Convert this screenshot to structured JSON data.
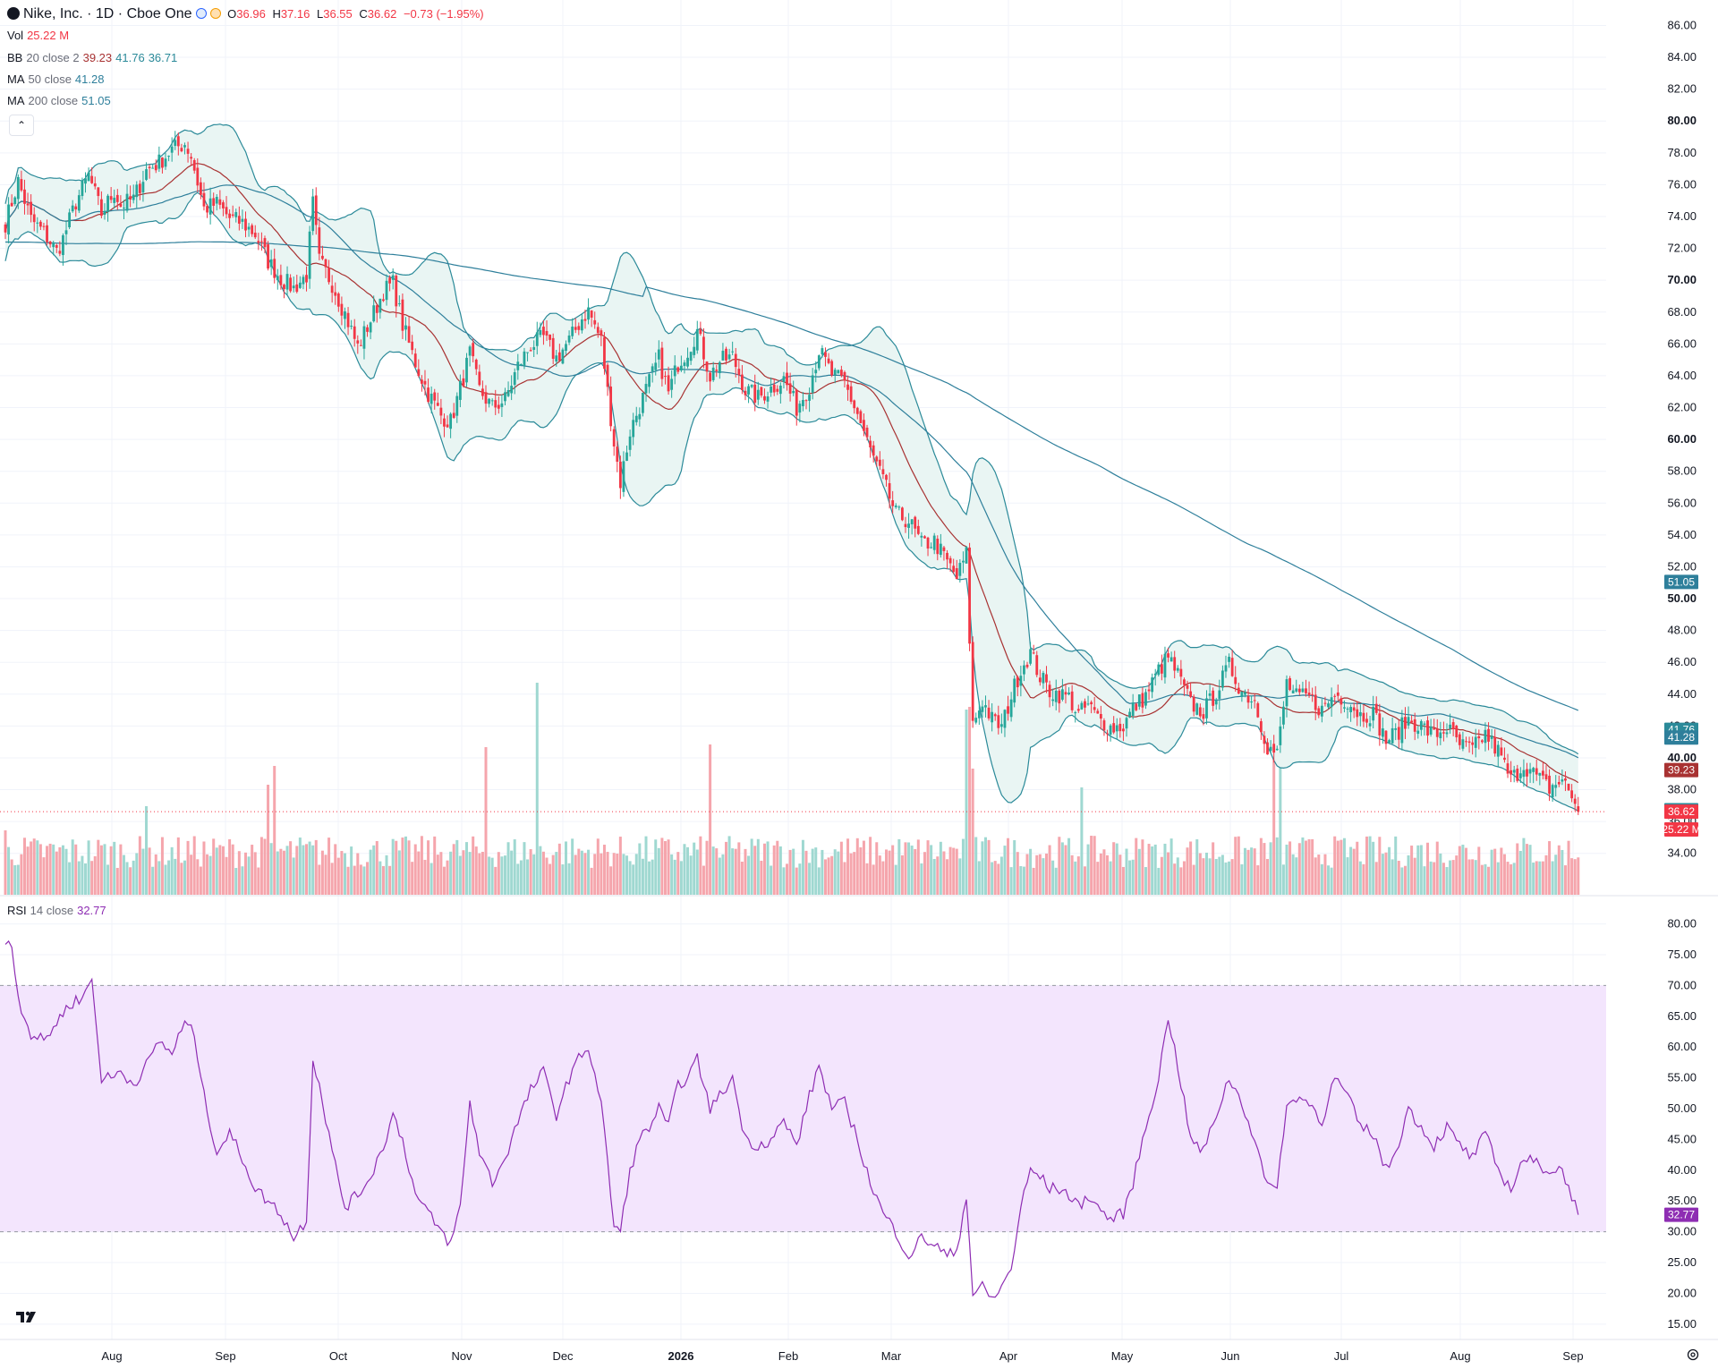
{
  "header": {
    "title": "Nike, Inc. · 1D · Cboe One",
    "open_label": "O",
    "open": "36.96",
    "high_label": "H",
    "high": "37.16",
    "low_label": "L",
    "low": "36.55",
    "close_label": "C",
    "close": "36.62",
    "change": "−0.73 (−1.95%)"
  },
  "indicators": {
    "vol": {
      "label": "Vol",
      "value": "25.22 M"
    },
    "bb": {
      "label": "BB",
      "params": "20 close 2",
      "basis": "39.23",
      "upper": "41.76",
      "lower": "36.71"
    },
    "ma50": {
      "label": "MA",
      "params": "50 close",
      "value": "41.28"
    },
    "ma200": {
      "label": "MA",
      "params": "200 close",
      "value": "51.05"
    },
    "rsi": {
      "label": "RSI",
      "params": "14 close",
      "value": "32.77"
    }
  },
  "colors": {
    "up": "#26a69a",
    "down": "#f23645",
    "bb": "#2b8a99",
    "bb_fill": "#e9f5f3",
    "basis": "#a83232",
    "ma": "#2e7f9b",
    "rsi": "#8e2db3",
    "rsi_fill": "#f3e5fd"
  },
  "chart_data": {
    "type": "candlestick",
    "price_axis": {
      "ticks": [
        "86.00",
        "84.00",
        "82.00",
        "80.00",
        "78.00",
        "76.00",
        "74.00",
        "72.00",
        "70.00",
        "68.00",
        "66.00",
        "64.00",
        "62.00",
        "60.00",
        "58.00",
        "56.00",
        "54.00",
        "52.00",
        "50.00",
        "48.00",
        "46.00",
        "44.00",
        "42.00",
        "40.00",
        "38.00",
        "36.00",
        "34.00"
      ],
      "range": [
        31.4,
        87.6
      ]
    },
    "rsi_axis": {
      "ticks": [
        "80.00",
        "75.00",
        "70.00",
        "65.00",
        "60.00",
        "55.00",
        "50.00",
        "45.00",
        "40.00",
        "35.00",
        "30.00",
        "25.00",
        "20.00",
        "15.00"
      ],
      "range": [
        12.8,
        84.3
      ],
      "bands": [
        30,
        70
      ]
    },
    "time_axis": [
      "Aug",
      "Sep",
      "Oct",
      "Nov",
      "Dec",
      "2026",
      "Feb",
      "Mar",
      "Apr",
      "May",
      "Jun",
      "Jul",
      "Aug",
      "Sep"
    ],
    "price_badges": [
      {
        "label": "51.05",
        "price": 51.05,
        "color": "#2e7f9b"
      },
      {
        "label": "41.76",
        "price": 41.76,
        "color": "#2b8a99"
      },
      {
        "label": "41.28",
        "price": 41.28,
        "color": "#2e7f9b"
      },
      {
        "label": "39.23",
        "price": 39.23,
        "color": "#a83232"
      },
      {
        "label": "36.71",
        "price": 36.71,
        "color": "#2b8a99"
      },
      {
        "label": "36.62",
        "price": 36.62,
        "color": "#f23645"
      },
      {
        "label": "25.22 M",
        "price": 35.5,
        "color": "#f23645"
      }
    ],
    "rsi_badge": {
      "label": "32.77",
      "value": 32.77
    },
    "close_keypoints": [
      [
        0,
        73.6
      ],
      [
        4,
        76.2
      ],
      [
        8,
        73.8
      ],
      [
        12,
        73.0
      ],
      [
        16,
        71.8
      ],
      [
        18,
        72.6
      ],
      [
        22,
        74.9
      ],
      [
        26,
        76.6
      ],
      [
        30,
        74.2
      ],
      [
        34,
        75.6
      ],
      [
        36,
        74.7
      ],
      [
        40,
        75.1
      ],
      [
        44,
        76.9
      ],
      [
        48,
        77.4
      ],
      [
        52,
        78.2
      ],
      [
        56,
        78.6
      ],
      [
        58,
        77.8
      ],
      [
        62,
        74.5
      ],
      [
        66,
        74.8
      ],
      [
        70,
        73.9
      ],
      [
        74,
        73.6
      ],
      [
        78,
        72.9
      ],
      [
        82,
        71.2
      ],
      [
        86,
        70.1
      ],
      [
        90,
        69.5
      ],
      [
        94,
        70.3
      ],
      [
        96,
        74.8
      ],
      [
        98,
        71.2
      ],
      [
        102,
        69.8
      ],
      [
        106,
        67.9
      ],
      [
        110,
        65.8
      ],
      [
        114,
        67.5
      ],
      [
        118,
        69.3
      ],
      [
        121,
        69.8
      ],
      [
        124,
        67.2
      ],
      [
        128,
        64.8
      ],
      [
        132,
        62.9
      ],
      [
        136,
        61.5
      ],
      [
        139,
        61.1
      ],
      [
        142,
        63.2
      ],
      [
        145,
        65.4
      ],
      [
        148,
        63.1
      ],
      [
        152,
        62.0
      ],
      [
        156,
        62.5
      ],
      [
        160,
        64.6
      ],
      [
        164,
        65.9
      ],
      [
        168,
        66.4
      ],
      [
        172,
        65.1
      ],
      [
        176,
        66.2
      ],
      [
        180,
        67.6
      ],
      [
        182,
        68.1
      ],
      [
        186,
        66.2
      ],
      [
        190,
        59.8
      ],
      [
        192,
        57.3
      ],
      [
        195,
        60.5
      ],
      [
        198,
        62.1
      ],
      [
        201,
        63.6
      ],
      [
        204,
        65.1
      ],
      [
        207,
        62.9
      ],
      [
        210,
        64.8
      ],
      [
        213,
        65.6
      ],
      [
        216,
        66.8
      ],
      [
        220,
        64.0
      ],
      [
        223,
        64.9
      ],
      [
        227,
        65.2
      ],
      [
        231,
        63.1
      ],
      [
        235,
        62.6
      ],
      [
        239,
        63.2
      ],
      [
        243,
        63.8
      ],
      [
        247,
        62.0
      ],
      [
        251,
        63.4
      ],
      [
        254,
        65.6
      ],
      [
        258,
        64.1
      ],
      [
        262,
        63.5
      ],
      [
        266,
        61.6
      ],
      [
        270,
        59.3
      ],
      [
        274,
        57.4
      ],
      [
        278,
        55.3
      ],
      [
        282,
        54.9
      ],
      [
        286,
        53.4
      ],
      [
        290,
        53.6
      ],
      [
        294,
        52.3
      ],
      [
        297,
        51.3
      ],
      [
        300,
        52.8
      ],
      [
        302,
        42.1
      ],
      [
        305,
        43.6
      ],
      [
        308,
        42.4
      ],
      [
        311,
        41.9
      ],
      [
        314,
        43.9
      ],
      [
        317,
        45.6
      ],
      [
        320,
        46.6
      ],
      [
        323,
        45.1
      ],
      [
        326,
        44.2
      ],
      [
        329,
        44.0
      ],
      [
        332,
        43.8
      ],
      [
        335,
        42.7
      ],
      [
        338,
        43.3
      ],
      [
        341,
        42.5
      ],
      [
        345,
        41.9
      ],
      [
        349,
        42.0
      ],
      [
        352,
        43.1
      ],
      [
        356,
        43.9
      ],
      [
        360,
        45.5
      ],
      [
        363,
        46.3
      ],
      [
        366,
        45.2
      ],
      [
        370,
        43.4
      ],
      [
        374,
        42.9
      ],
      [
        378,
        44.1
      ],
      [
        382,
        45.8
      ],
      [
        386,
        44.2
      ],
      [
        390,
        43.6
      ],
      [
        394,
        40.7
      ],
      [
        397,
        40.2
      ],
      [
        400,
        44.7
      ],
      [
        403,
        43.8
      ],
      [
        407,
        43.8
      ],
      [
        411,
        43.0
      ],
      [
        415,
        44.0
      ],
      [
        419,
        43.6
      ],
      [
        423,
        42.7
      ],
      [
        427,
        42.8
      ],
      [
        431,
        41.1
      ],
      [
        434,
        41.5
      ],
      [
        438,
        42.4
      ],
      [
        442,
        42.0
      ],
      [
        446,
        41.4
      ],
      [
        450,
        41.9
      ],
      [
        454,
        40.8
      ],
      [
        458,
        40.5
      ],
      [
        462,
        41.5
      ],
      [
        466,
        40.4
      ],
      [
        470,
        38.6
      ],
      [
        474,
        39.6
      ],
      [
        478,
        38.8
      ],
      [
        482,
        38.1
      ],
      [
        486,
        38.6
      ],
      [
        489,
        37.6
      ],
      [
        491,
        36.62
      ]
    ],
    "volume_range_m": [
      0,
      80
    ],
    "volume_spikes": [
      [
        0,
        24
      ],
      [
        44,
        33
      ],
      [
        82,
        41
      ],
      [
        84,
        48
      ],
      [
        150,
        55
      ],
      [
        166,
        79
      ],
      [
        220,
        56
      ],
      [
        300,
        69
      ],
      [
        301,
        70
      ],
      [
        302,
        47
      ],
      [
        336,
        40
      ],
      [
        396,
        66
      ],
      [
        398,
        55
      ]
    ],
    "rsi_keypoints": [
      [
        0,
        77
      ],
      [
        2,
        77
      ],
      [
        4,
        68
      ],
      [
        8,
        62
      ],
      [
        12,
        61
      ],
      [
        16,
        64
      ],
      [
        20,
        67
      ],
      [
        24,
        68
      ],
      [
        27,
        71
      ],
      [
        30,
        55
      ],
      [
        33,
        55
      ],
      [
        36,
        56
      ],
      [
        40,
        54
      ],
      [
        44,
        57
      ],
      [
        48,
        61
      ],
      [
        52,
        59
      ],
      [
        56,
        64
      ],
      [
        59,
        62
      ],
      [
        62,
        52
      ],
      [
        66,
        43
      ],
      [
        70,
        46
      ],
      [
        74,
        42
      ],
      [
        78,
        37
      ],
      [
        82,
        35
      ],
      [
        86,
        33
      ],
      [
        90,
        29
      ],
      [
        94,
        32
      ],
      [
        96,
        58
      ],
      [
        98,
        54
      ],
      [
        102,
        43
      ],
      [
        106,
        34
      ],
      [
        110,
        36
      ],
      [
        114,
        39
      ],
      [
        118,
        44
      ],
      [
        121,
        49
      ],
      [
        124,
        45
      ],
      [
        128,
        36
      ],
      [
        132,
        33
      ],
      [
        136,
        30
      ],
      [
        139,
        28
      ],
      [
        142,
        34
      ],
      [
        145,
        51
      ],
      [
        148,
        43
      ],
      [
        152,
        38
      ],
      [
        156,
        42
      ],
      [
        160,
        48
      ],
      [
        164,
        53
      ],
      [
        168,
        56
      ],
      [
        172,
        49
      ],
      [
        176,
        55
      ],
      [
        180,
        59
      ],
      [
        182,
        60
      ],
      [
        186,
        51
      ],
      [
        190,
        31
      ],
      [
        192,
        30
      ],
      [
        195,
        40
      ],
      [
        198,
        45
      ],
      [
        201,
        47
      ],
      [
        204,
        50
      ],
      [
        207,
        47
      ],
      [
        210,
        54
      ],
      [
        213,
        55
      ],
      [
        216,
        58
      ],
      [
        220,
        50
      ],
      [
        223,
        52
      ],
      [
        227,
        55
      ],
      [
        231,
        45
      ],
      [
        235,
        44
      ],
      [
        239,
        45
      ],
      [
        243,
        48
      ],
      [
        247,
        44
      ],
      [
        251,
        52
      ],
      [
        254,
        57
      ],
      [
        258,
        50
      ],
      [
        262,
        51
      ],
      [
        266,
        45
      ],
      [
        270,
        38
      ],
      [
        274,
        33
      ],
      [
        278,
        30
      ],
      [
        282,
        26
      ],
      [
        286,
        29
      ],
      [
        290,
        28
      ],
      [
        294,
        26
      ],
      [
        297,
        27
      ],
      [
        300,
        36
      ],
      [
        302,
        20
      ],
      [
        305,
        21
      ],
      [
        308,
        19
      ],
      [
        311,
        21
      ],
      [
        314,
        24
      ],
      [
        317,
        34
      ],
      [
        320,
        40
      ],
      [
        323,
        39
      ],
      [
        326,
        37
      ],
      [
        329,
        37
      ],
      [
        332,
        36
      ],
      [
        335,
        34
      ],
      [
        338,
        36
      ],
      [
        341,
        34
      ],
      [
        345,
        32
      ],
      [
        349,
        33
      ],
      [
        352,
        38
      ],
      [
        356,
        47
      ],
      [
        360,
        55
      ],
      [
        363,
        65
      ],
      [
        366,
        57
      ],
      [
        370,
        45
      ],
      [
        374,
        43
      ],
      [
        378,
        49
      ],
      [
        382,
        55
      ],
      [
        386,
        51
      ],
      [
        390,
        45
      ],
      [
        394,
        37
      ],
      [
        397,
        38
      ],
      [
        400,
        50
      ],
      [
        403,
        52
      ],
      [
        407,
        51
      ],
      [
        411,
        48
      ],
      [
        415,
        55
      ],
      [
        419,
        52
      ],
      [
        423,
        47
      ],
      [
        427,
        46
      ],
      [
        431,
        40
      ],
      [
        434,
        43
      ],
      [
        438,
        50
      ],
      [
        442,
        47
      ],
      [
        446,
        44
      ],
      [
        450,
        47
      ],
      [
        454,
        44
      ],
      [
        458,
        42
      ],
      [
        462,
        46
      ],
      [
        466,
        40
      ],
      [
        470,
        37
      ],
      [
        474,
        42
      ],
      [
        478,
        41
      ],
      [
        482,
        40
      ],
      [
        486,
        40
      ],
      [
        489,
        36
      ],
      [
        491,
        32.77
      ]
    ]
  }
}
